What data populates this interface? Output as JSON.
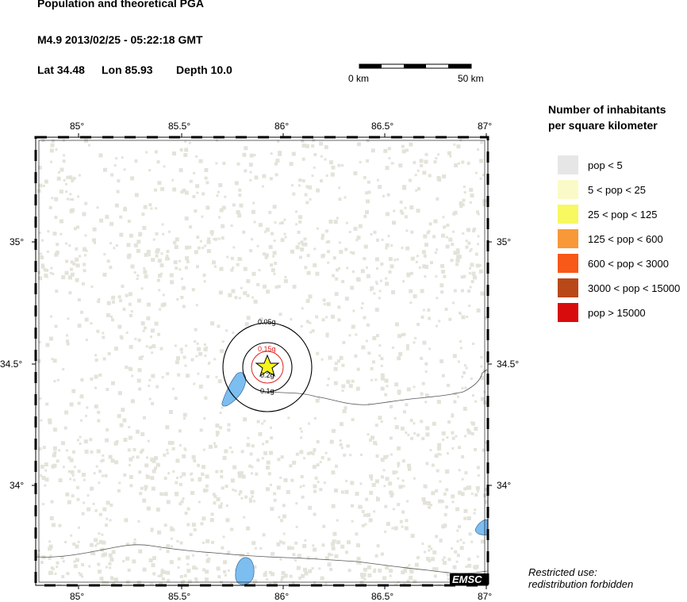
{
  "header": {
    "title": "Population and theoretical PGA",
    "event": "M4.9  2013/02/25 - 05:22:18 GMT",
    "lat_label": "Lat 34.48",
    "lon_label": "Lon  85.93",
    "depth_label": "Depth  10.0"
  },
  "scale_bar": {
    "start_label": "0 km",
    "end_label": "50 km"
  },
  "axes": {
    "lon_ticks": [
      "85°",
      "85.5°",
      "86°",
      "86.5°",
      "87°"
    ],
    "lat_ticks": [
      "35°",
      "34.5°",
      "34°"
    ]
  },
  "contours": [
    "0.05g",
    "0.1g",
    "0.15g",
    "0.2g"
  ],
  "legend": {
    "title_line1": "Number of inhabitants",
    "title_line2": "per square kilometer",
    "items": [
      {
        "label": "pop < 5",
        "color": "#e6e6e6"
      },
      {
        "label": "5 < pop < 25",
        "color": "#fafac8"
      },
      {
        "label": "25 < pop < 125",
        "color": "#f8f860"
      },
      {
        "label": "125 < pop < 600",
        "color": "#f89838"
      },
      {
        "label": "600 < pop < 3000",
        "color": "#f85818"
      },
      {
        "label": "3000 < pop < 15000",
        "color": "#b84818"
      },
      {
        "label": "pop > 15000",
        "color": "#d80c0c"
      }
    ]
  },
  "colors": {
    "population_low": "#e3e3da",
    "water": "#7dbef0",
    "epicenter": "#f5f51e",
    "contour_highlight": "#e02020"
  },
  "logo": "EMSC",
  "restricted": {
    "line1": "Restricted use:",
    "line2": "redistribution forbidden"
  }
}
